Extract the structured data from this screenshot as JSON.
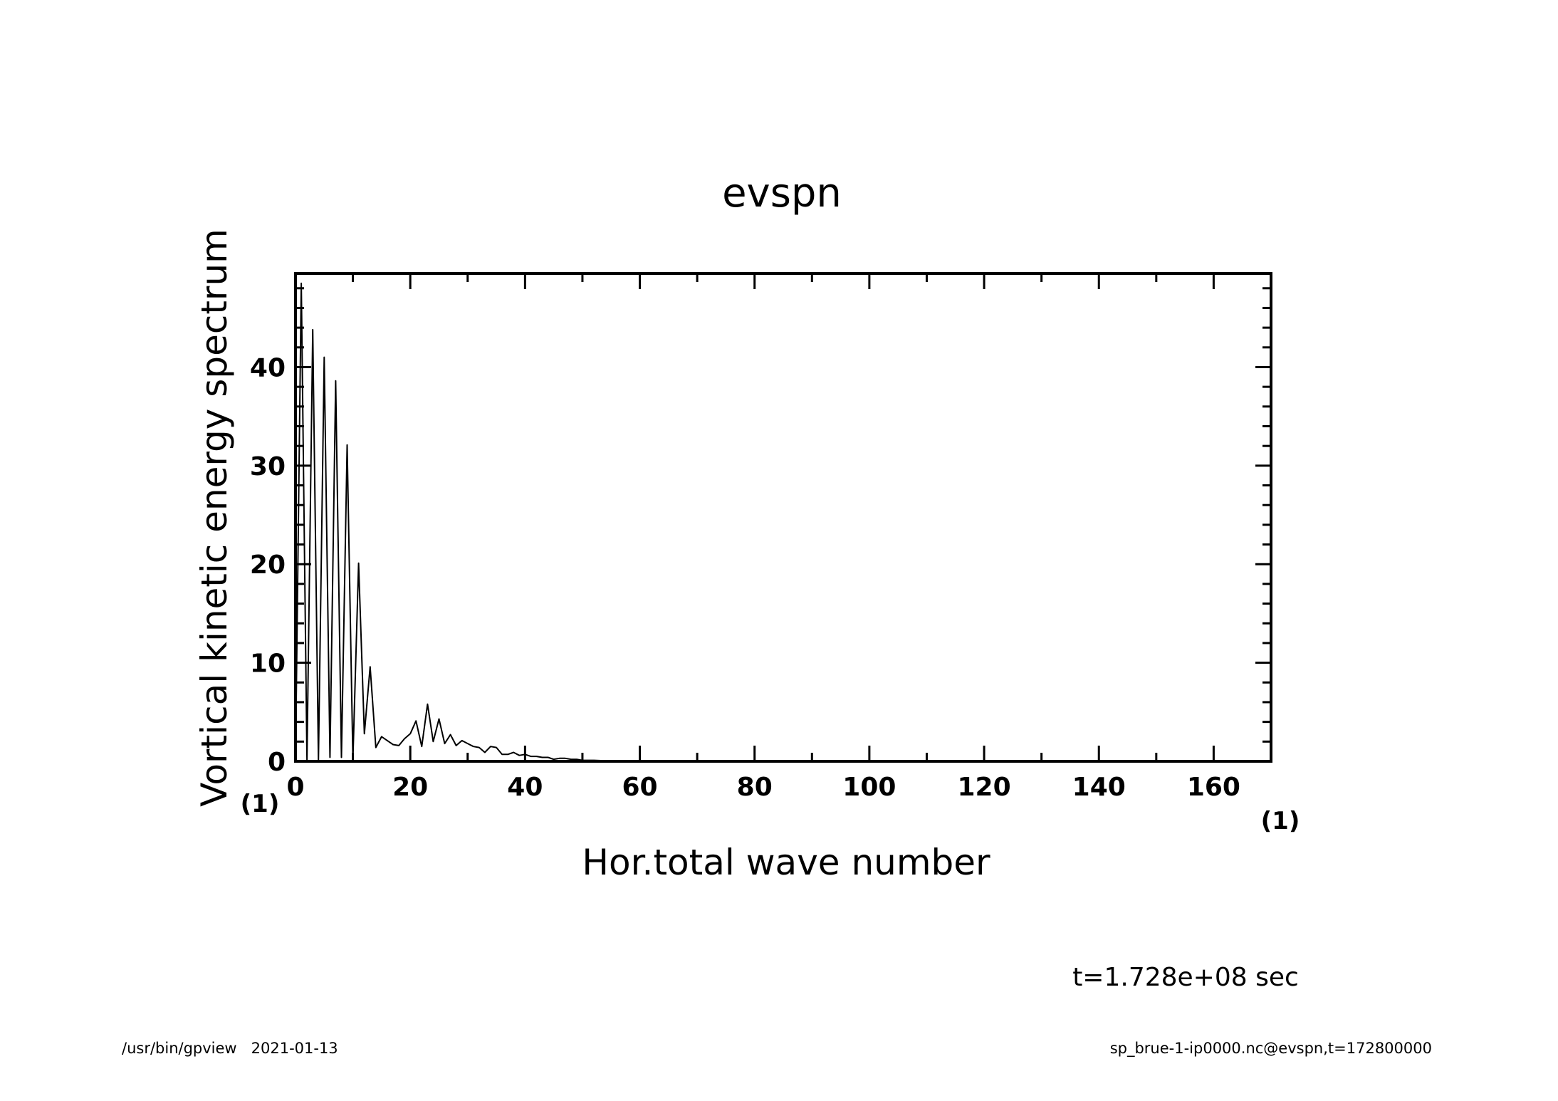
{
  "chart_data": {
    "type": "line",
    "title": "evspn",
    "xlabel": "Hor.total wave number",
    "ylabel": "Vortical kinetic energy spectrum",
    "x_unit": "(1)",
    "y_unit": "(1)",
    "xlim": [
      0,
      170
    ],
    "ylim": [
      0,
      49.5
    ],
    "x_ticks": [
      0,
      20,
      40,
      60,
      80,
      100,
      120,
      140,
      160
    ],
    "y_ticks": [
      0,
      10,
      20,
      30,
      40
    ],
    "grid": false,
    "series": [
      {
        "x": [
          0,
          1,
          2,
          3,
          4,
          5,
          6,
          7,
          8,
          9,
          10,
          11,
          12,
          13,
          14,
          15,
          16,
          17,
          18,
          19,
          20,
          21,
          22,
          23,
          24,
          25,
          26,
          27,
          28,
          29,
          30,
          31,
          32,
          33,
          34,
          35,
          36,
          37,
          38,
          39,
          40,
          41,
          42,
          43,
          44,
          45,
          46,
          47,
          48,
          49,
          50,
          52,
          54,
          56,
          58,
          60,
          65,
          70,
          80,
          100,
          120,
          140,
          160,
          170
        ],
        "values": [
          0,
          48.5,
          0.1,
          43.8,
          0.1,
          41.0,
          0.4,
          38.6,
          0.4,
          32.1,
          0.2,
          20.1,
          2.8,
          9.6,
          1.4,
          2.5,
          2.1,
          1.7,
          1.6,
          2.3,
          2.8,
          4.1,
          1.5,
          5.8,
          2.0,
          4.3,
          1.8,
          2.7,
          1.6,
          2.1,
          1.8,
          1.5,
          1.4,
          0.9,
          1.5,
          1.4,
          0.7,
          0.7,
          0.9,
          0.6,
          0.7,
          0.5,
          0.5,
          0.4,
          0.4,
          0.2,
          0.3,
          0.3,
          0.2,
          0.2,
          0.1,
          0.1,
          0.05,
          0.05,
          0.03,
          0.02,
          0.01,
          0.0,
          0.0,
          0.0,
          0.0,
          0.0,
          0.0,
          0.0
        ]
      }
    ]
  },
  "annotations": {
    "time": "t=1.728e+08 sec",
    "footer_left": "/usr/bin/gpview   2021-01-13",
    "footer_right": "sp_brue-1-ip0000.nc@evspn,t=172800000"
  }
}
